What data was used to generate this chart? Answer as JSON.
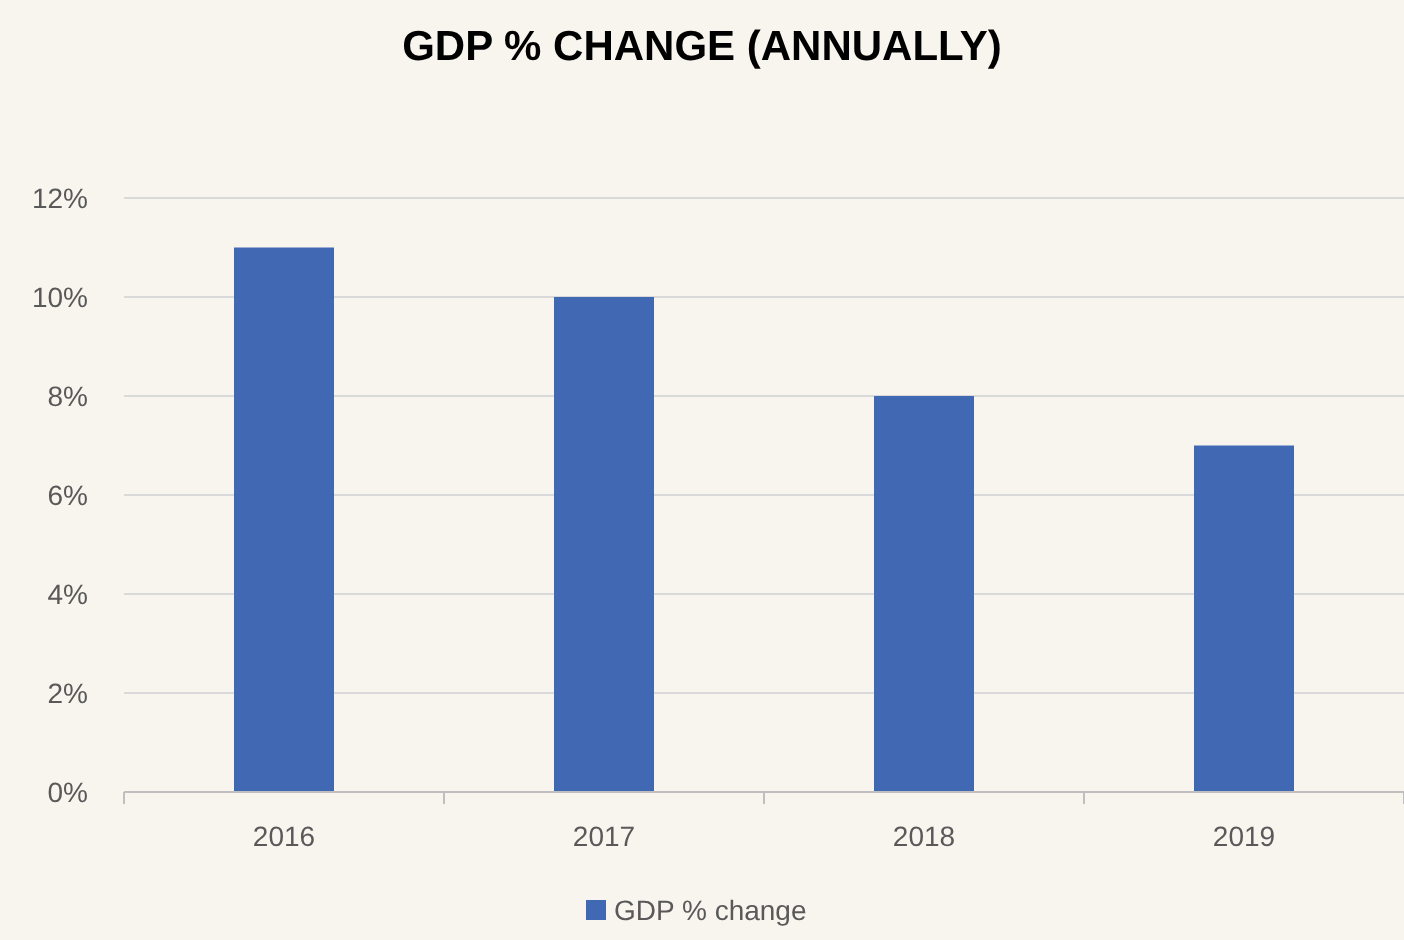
{
  "chart_data": {
    "type": "bar",
    "title": "GDP % CHANGE (ANNUALLY)",
    "categories": [
      "2016",
      "2017",
      "2018",
      "2019"
    ],
    "series": [
      {
        "name": "GDP % change",
        "color": "#4169b3",
        "values": [
          11,
          10,
          8,
          7
        ]
      }
    ],
    "ylim": [
      0,
      12
    ],
    "yticks": [
      {
        "value": 0,
        "label": "0%"
      },
      {
        "value": 2,
        "label": "2%"
      },
      {
        "value": 4,
        "label": "4%"
      },
      {
        "value": 6,
        "label": "6%"
      },
      {
        "value": 8,
        "label": "8%"
      },
      {
        "value": 10,
        "label": "10%"
      },
      {
        "value": 12,
        "label": "12%"
      }
    ],
    "grid": "y",
    "legend": "bottom"
  }
}
